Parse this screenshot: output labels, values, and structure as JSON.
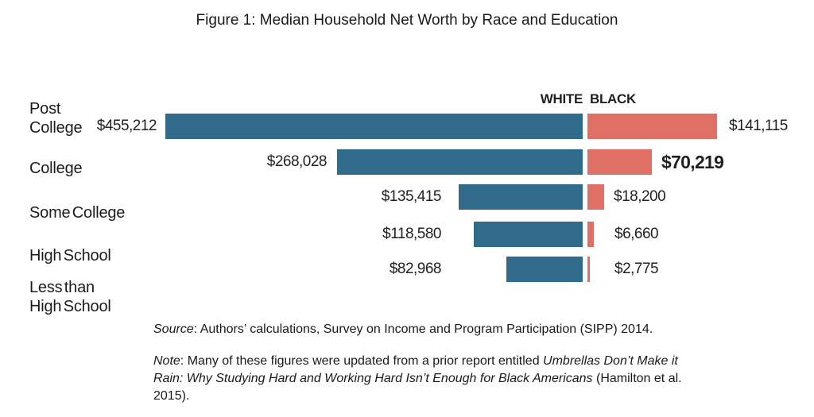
{
  "title": "Figure 1: Median Household Net Worth by Race and Education",
  "chart_data": {
    "type": "bar",
    "variant": "horizontal-diverging",
    "title": "Figure 1: Median Household Net Worth by Race and Education",
    "categories": [
      "Post College",
      "College",
      "Some College",
      "High School",
      "Less than High School"
    ],
    "series": [
      {
        "name": "WHITE",
        "values": [
          455212,
          268028,
          135415,
          118580,
          82968
        ]
      },
      {
        "name": "BLACK",
        "values": [
          141115,
          70219,
          18200,
          6660,
          2775
        ]
      }
    ],
    "value_labels": {
      "white": [
        "$455,212",
        "$268,028",
        "$135,415",
        "$118,580",
        "$82,968"
      ],
      "black": [
        "$141,115",
        "$70,219",
        "$18,200",
        "$6,660",
        "$2,775"
      ]
    },
    "emphasized_value_label": "$70,219",
    "colors": {
      "white": "#306b8c",
      "black": "#e06f65"
    },
    "legend": {
      "white": "WHITE",
      "black": "BLACK",
      "position": "top-center"
    },
    "axes_hidden": true,
    "grid": false
  },
  "categories_display": [
    {
      "line1": "Post",
      "line2": "College"
    },
    {
      "line1": "College",
      "line2": ""
    },
    {
      "line1": "Some College",
      "line2": ""
    },
    {
      "line1": "High School",
      "line2": ""
    },
    {
      "line1": "Less than",
      "line2": "High School"
    }
  ],
  "source": {
    "segments": [
      {
        "text": "Source",
        "italic": true
      },
      {
        "text": ": Authors’ calculations, Survey on Income and Program Participation (SIPP) 2014.",
        "italic": false
      }
    ]
  },
  "note": {
    "lines": [
      {
        "segments": [
          {
            "text": "Note",
            "italic": true
          },
          {
            "text": ": Many of these figures were updated from a prior report entitled ",
            "italic": false
          },
          {
            "text": "Umbrellas Don’t Make it",
            "italic": true
          }
        ]
      },
      {
        "segments": [
          {
            "text": "Rain: Why Studying Hard and Working Hard Isn’t Enough for Black Americans",
            "italic": true
          },
          {
            "text": " (Hamilton et al.",
            "italic": false
          }
        ]
      },
      {
        "segments": [
          {
            "text": "2015).",
            "italic": false
          }
        ]
      }
    ]
  }
}
